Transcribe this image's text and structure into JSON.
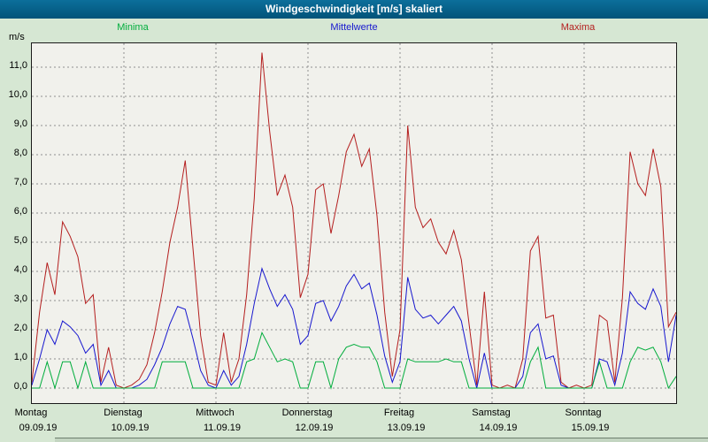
{
  "title_bar": {
    "title": "Windgeschwindigkeit [m/s] skaliert"
  },
  "legend": [
    {
      "label": "Minima",
      "color": "#00ad3c"
    },
    {
      "label": "Mittelwerte",
      "color": "#1717cf"
    },
    {
      "label": "Maxima",
      "color": "#b41e1e"
    }
  ],
  "axes": {
    "y_unit": "m/s",
    "y_ticks": [
      "11,0",
      "10,0",
      "9,0",
      "8,0",
      "7,0",
      "6,0",
      "5,0",
      "4,0",
      "3,0",
      "2,0",
      "1,0",
      "0,0"
    ],
    "x_days": [
      {
        "weekday": "Montag",
        "date": "09.09.19"
      },
      {
        "weekday": "Dienstag",
        "date": "10.09.19"
      },
      {
        "weekday": "Mittwoch",
        "date": "11.09.19"
      },
      {
        "weekday": "Donnerstag",
        "date": "12.09.19"
      },
      {
        "weekday": "Freitag",
        "date": "13.09.19"
      },
      {
        "weekday": "Samstag",
        "date": "14.09.19"
      },
      {
        "weekday": "Sonntag",
        "date": "15.09.19"
      }
    ]
  },
  "chart_data": {
    "type": "line",
    "title": "Windgeschwindigkeit [m/s] skaliert",
    "ylabel": "m/s",
    "ylim": [
      0,
      11.8
    ],
    "y_gridline_step": 1.0,
    "grid": "dashed gray, horizontal every 1.0 m/s, vertical at each day boundary",
    "legend_position": "top",
    "x_start": "09.09.19 00:00",
    "x_end": "16.09.19 00:00",
    "points_per_day": 12,
    "sampling": "approx. every 2 hours over 7 days, values in m/s estimated from plot",
    "categories_days": [
      "Montag 09.09.19",
      "Dienstag 10.09.19",
      "Mittwoch 11.09.19",
      "Donnerstag 12.09.19",
      "Freitag 13.09.19",
      "Samstag 14.09.19",
      "Sonntag 15.09.19"
    ],
    "series": [
      {
        "name": "Maxima",
        "color": "#b41e1e",
        "values": [
          0.2,
          2.6,
          4.3,
          3.2,
          5.7,
          5.2,
          4.5,
          2.9,
          3.2,
          0.2,
          1.4,
          0.1,
          0.0,
          0.1,
          0.3,
          0.8,
          1.9,
          3.3,
          5.0,
          6.2,
          7.8,
          4.8,
          1.8,
          0.2,
          0.1,
          1.9,
          0.2,
          1.0,
          3.2,
          6.5,
          11.5,
          8.8,
          6.6,
          7.3,
          6.2,
          3.1,
          3.9,
          6.8,
          7.0,
          5.3,
          6.6,
          8.1,
          8.7,
          7.6,
          8.2,
          5.9,
          2.6,
          0.4,
          2.0,
          9.0,
          6.2,
          5.5,
          5.8,
          5.0,
          4.6,
          5.4,
          4.4,
          2.2,
          0.1,
          3.3,
          0.1,
          0.0,
          0.1,
          0.0,
          1.0,
          4.7,
          5.2,
          2.4,
          2.5,
          0.2,
          0.0,
          0.1,
          0.0,
          0.1,
          2.5,
          2.3,
          0.2,
          3.1,
          8.1,
          7.0,
          6.6,
          8.2,
          6.9,
          2.1,
          2.6
        ]
      },
      {
        "name": "Mittelwerte",
        "color": "#1717cf",
        "values": [
          0.1,
          1.0,
          2.0,
          1.5,
          2.3,
          2.1,
          1.8,
          1.2,
          1.5,
          0.1,
          0.6,
          0.0,
          0.0,
          0.0,
          0.1,
          0.3,
          0.8,
          1.4,
          2.2,
          2.8,
          2.7,
          1.7,
          0.6,
          0.1,
          0.0,
          0.6,
          0.1,
          0.4,
          1.5,
          2.9,
          4.1,
          3.4,
          2.8,
          3.2,
          2.7,
          1.5,
          1.8,
          2.9,
          3.0,
          2.3,
          2.8,
          3.5,
          3.9,
          3.4,
          3.6,
          2.5,
          1.1,
          0.2,
          0.9,
          3.8,
          2.7,
          2.4,
          2.5,
          2.2,
          2.5,
          2.8,
          2.3,
          1.0,
          0.0,
          1.2,
          0.0,
          0.0,
          0.0,
          0.0,
          0.4,
          1.9,
          2.2,
          1.0,
          1.1,
          0.1,
          0.0,
          0.0,
          0.0,
          0.0,
          1.0,
          0.9,
          0.1,
          1.2,
          3.3,
          2.9,
          2.7,
          3.4,
          2.8,
          0.9,
          2.5
        ]
      },
      {
        "name": "Minima",
        "color": "#00ad3c",
        "values": [
          0.0,
          0.0,
          0.9,
          0.0,
          0.9,
          0.9,
          0.0,
          0.9,
          0.0,
          0.0,
          0.0,
          0.0,
          0.0,
          0.0,
          0.0,
          0.0,
          0.0,
          0.9,
          0.9,
          0.9,
          0.9,
          0.0,
          0.0,
          0.0,
          0.0,
          0.0,
          0.0,
          0.0,
          0.9,
          1.0,
          1.9,
          1.4,
          0.9,
          1.0,
          0.9,
          0.0,
          0.0,
          0.9,
          0.9,
          0.0,
          1.0,
          1.4,
          1.5,
          1.4,
          1.4,
          0.9,
          0.0,
          0.0,
          0.0,
          1.0,
          0.9,
          0.9,
          0.9,
          0.9,
          1.0,
          0.9,
          0.9,
          0.0,
          0.0,
          0.0,
          0.0,
          0.0,
          0.0,
          0.0,
          0.0,
          0.9,
          1.4,
          0.0,
          0.0,
          0.0,
          0.0,
          0.0,
          0.0,
          0.0,
          0.9,
          0.0,
          0.0,
          0.0,
          0.9,
          1.4,
          1.3,
          1.4,
          0.9,
          0.0,
          0.4
        ]
      }
    ]
  }
}
